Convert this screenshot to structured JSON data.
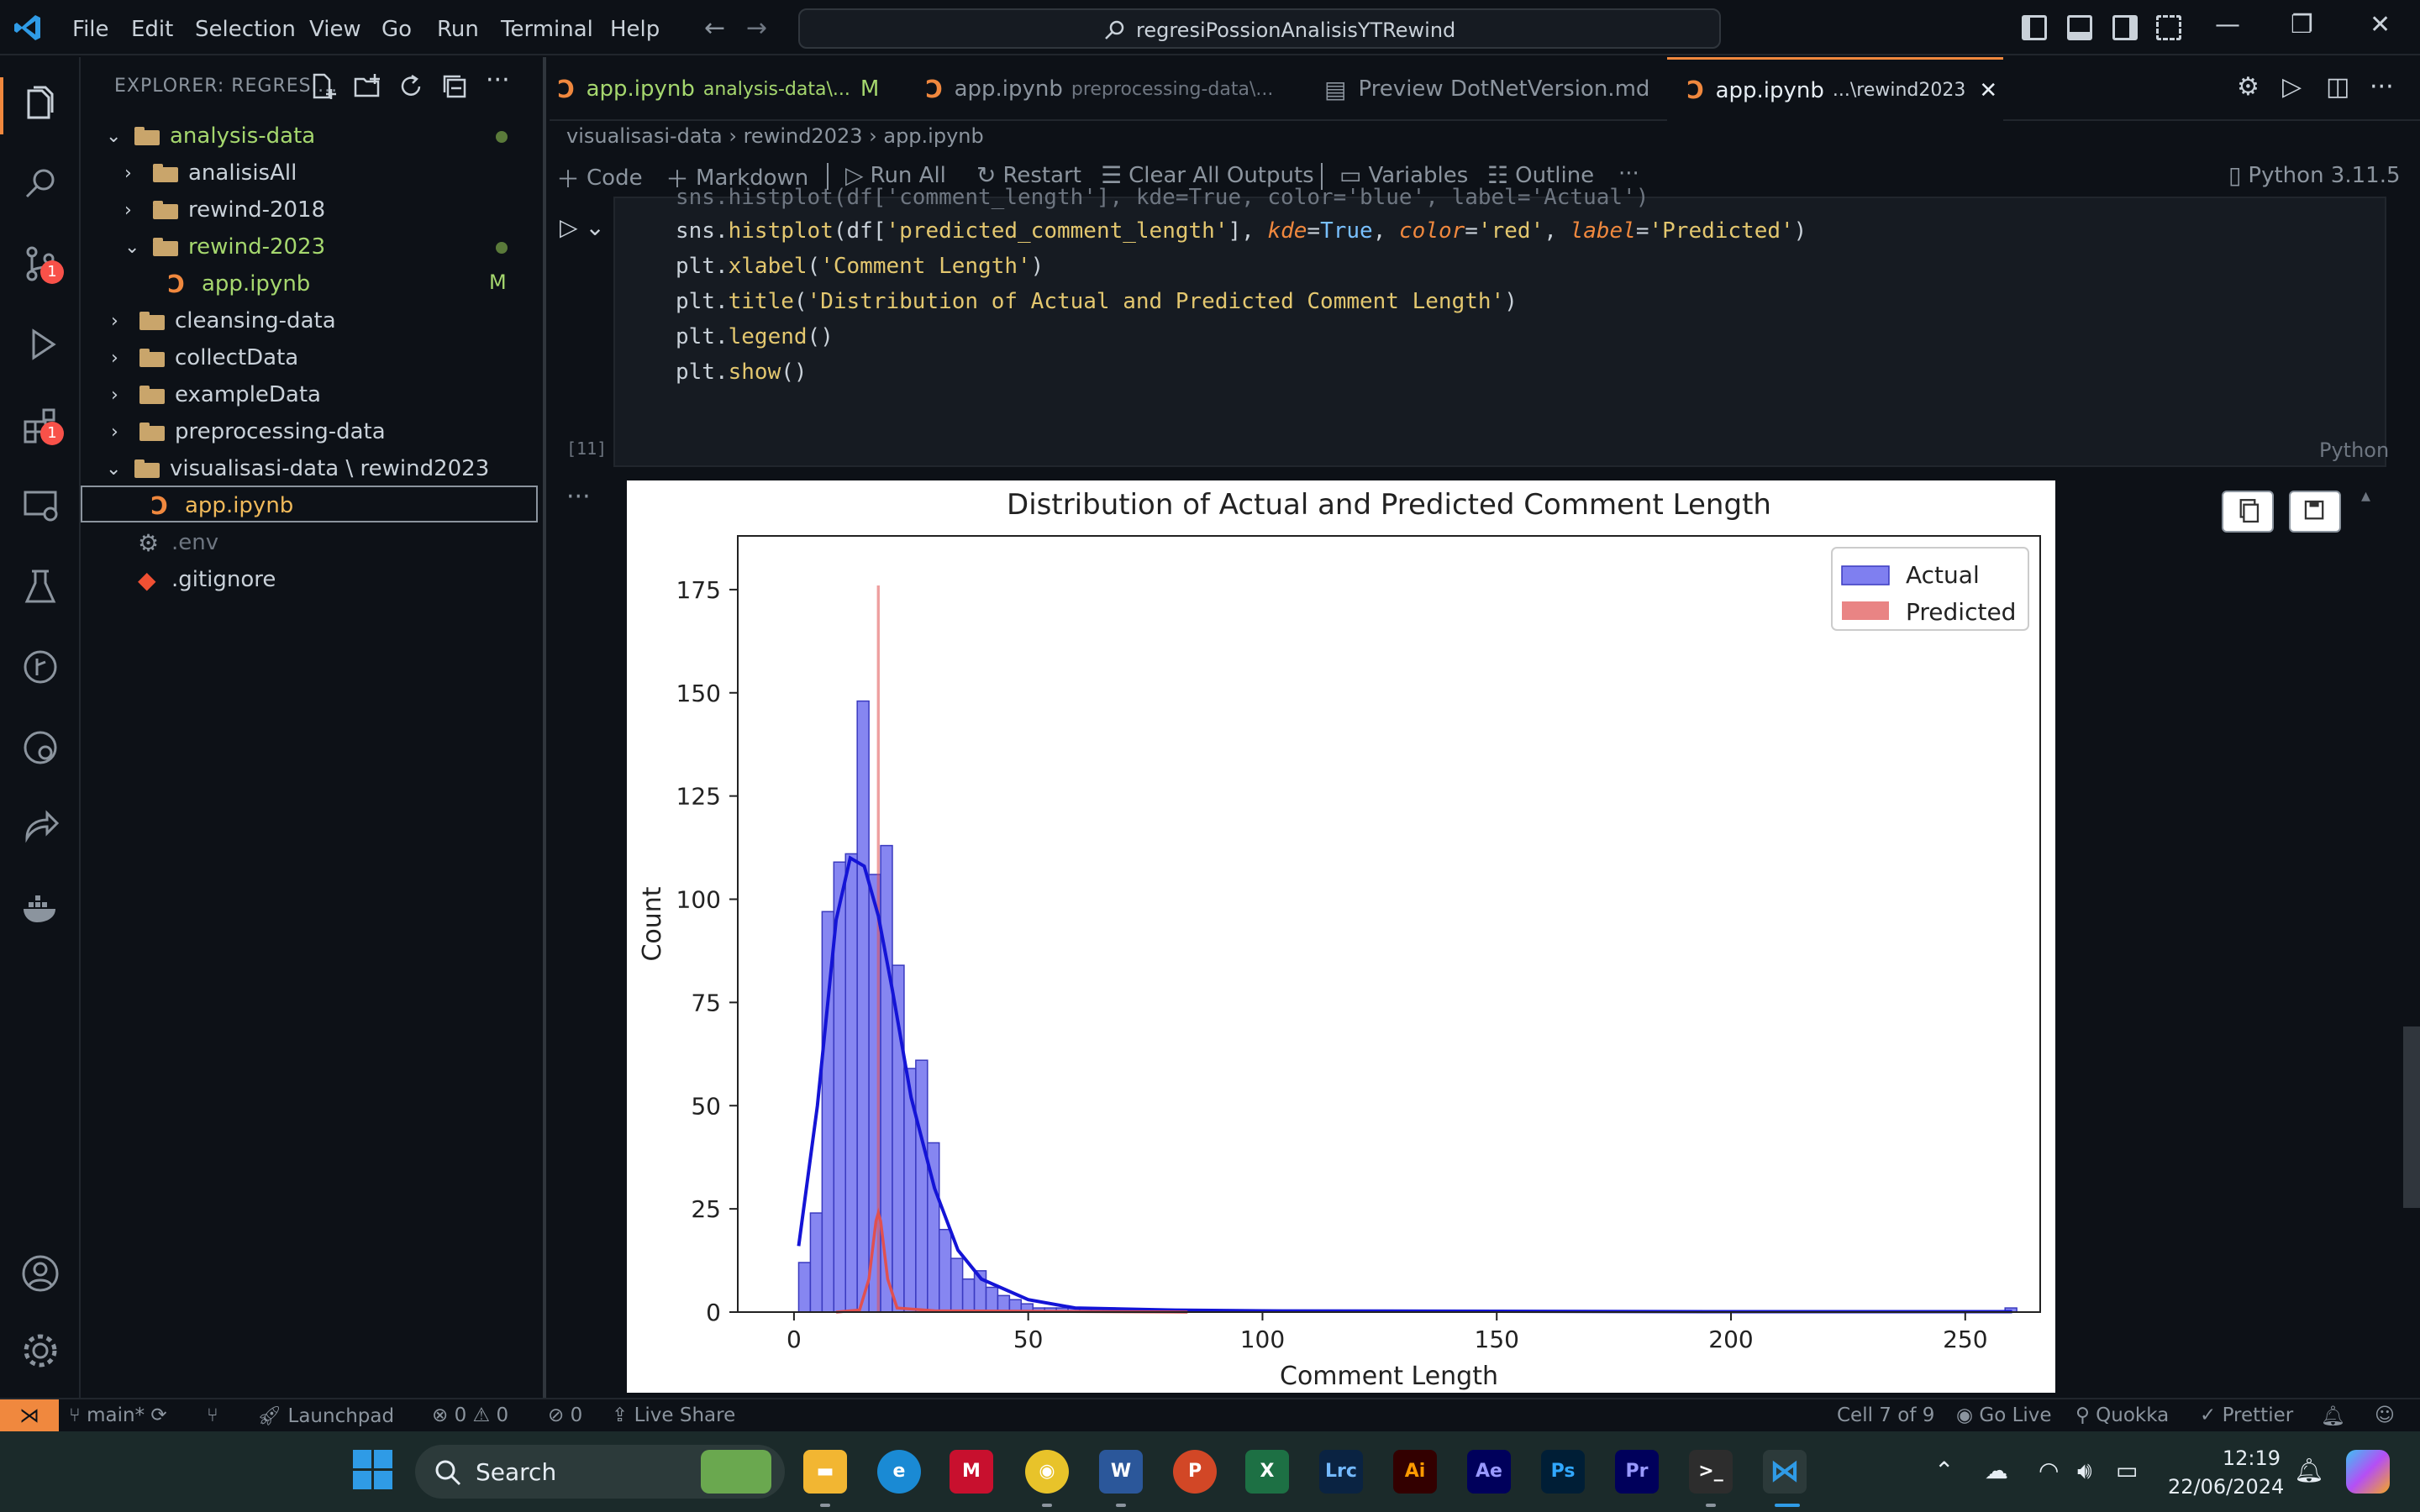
{
  "menu": [
    "File",
    "Edit",
    "Selection",
    "View",
    "Go",
    "Run",
    "Terminal",
    "Help"
  ],
  "command_center": "regresiPossionAnalisisYTRewind",
  "explorer": {
    "title": "EXPLORER: REGRESI...",
    "items": [
      {
        "label": "analysis-data"
      },
      {
        "label": "analisisAll"
      },
      {
        "label": "rewind-2018"
      },
      {
        "label": "rewind-2023"
      },
      {
        "label": "app.ipynb",
        "status": "M"
      },
      {
        "label": "cleansing-data"
      },
      {
        "label": "collectData"
      },
      {
        "label": "exampleData"
      },
      {
        "label": "preprocessing-data"
      },
      {
        "label": "visualisasi-data \\ rewind2023"
      },
      {
        "label": "app.ipynb"
      },
      {
        "label": ".env"
      },
      {
        "label": ".gitignore"
      }
    ]
  },
  "badges": {
    "source_control": "1",
    "extensions": "1"
  },
  "tabs": [
    {
      "label": "app.ipynb",
      "desc": "analysis-data\\...",
      "status": "M"
    },
    {
      "label": "app.ipynb",
      "desc": "preprocessing-data\\..."
    },
    {
      "label": "Preview DotNetVersion.md",
      "desc": ""
    },
    {
      "label": "app.ipynb",
      "desc": "...\\rewind2023",
      "close": "✕"
    }
  ],
  "breadcrumb": "visualisasi-data  ›  rewind2023  ›  app.ipynb",
  "toolbar": {
    "code": "Code",
    "markdown": "Markdown",
    "run_all": "Run All",
    "restart": "Restart",
    "clear": "Clear All Outputs",
    "variables": "Variables",
    "outline": "Outline",
    "more": "···",
    "kernel": "Python 3.11.5"
  },
  "cell": {
    "exec_count": "[11]",
    "language": "Python",
    "code": [
      "sns.histplot(df['comment_length'], kde=True, color='blue', label='Actual')",
      "sns.histplot(df['predicted_comment_length'], kde=True, color='red', label='Predicted')",
      "plt.xlabel('Comment Length')",
      "plt.title('Distribution of Actual and Predicted Comment Length')",
      "plt.legend()",
      "plt.show()"
    ]
  },
  "chart_data": {
    "type": "bar",
    "title": "Distribution of Actual and Predicted Comment Length",
    "xlabel": "Comment Length",
    "ylabel": "Count",
    "xlim": [
      -12,
      266
    ],
    "ylim": [
      0,
      188
    ],
    "xticks": [
      0,
      50,
      100,
      150,
      200,
      250
    ],
    "yticks": [
      0,
      25,
      50,
      75,
      100,
      125,
      150,
      175
    ],
    "legend": {
      "placement": "top-right",
      "entries": [
        "Actual",
        "Predicted"
      ]
    },
    "colors": {
      "actual_fill": "#7f7ff0",
      "actual_edge": "#3a3ac0",
      "actual_kde": "#1414d6",
      "predicted": "#e05050"
    },
    "series": [
      {
        "name": "Actual",
        "bin_width": 2.5,
        "bin_start": 1,
        "values": [
          12,
          24,
          97,
          109,
          111,
          148,
          106,
          113,
          84,
          59,
          61,
          41,
          20,
          13,
          8,
          10,
          6,
          4,
          3,
          2,
          1,
          1,
          1,
          1,
          1,
          1,
          1,
          0,
          0,
          0,
          0,
          0,
          0,
          0,
          0,
          0,
          0,
          0,
          0,
          0,
          0,
          0,
          0,
          0,
          0,
          0,
          0,
          0,
          0,
          0,
          0,
          0,
          0,
          0,
          0,
          0,
          0,
          0,
          0,
          0,
          0,
          0,
          0,
          0,
          0,
          0,
          0,
          0,
          0,
          0,
          0,
          0,
          0,
          0,
          0,
          0,
          0,
          0,
          0,
          0,
          0,
          0,
          0,
          0,
          0,
          0,
          0,
          0,
          0,
          0,
          0,
          0,
          0,
          0,
          0,
          0,
          0,
          0,
          0,
          0,
          0,
          0,
          0,
          1
        ],
        "kde": [
          [
            1,
            16
          ],
          [
            5,
            50
          ],
          [
            9,
            95
          ],
          [
            12,
            110
          ],
          [
            15,
            108
          ],
          [
            18,
            96
          ],
          [
            21,
            78
          ],
          [
            25,
            52
          ],
          [
            30,
            30
          ],
          [
            35,
            15
          ],
          [
            40,
            8
          ],
          [
            50,
            3
          ],
          [
            60,
            1
          ],
          [
            80,
            0.5
          ],
          [
            100,
            0.3
          ],
          [
            150,
            0.2
          ],
          [
            200,
            0.1
          ],
          [
            260,
            0.1
          ]
        ]
      },
      {
        "name": "Predicted",
        "bar": {
          "x": 18,
          "width": 0.6,
          "value": 176
        },
        "kde": [
          [
            9,
            0
          ],
          [
            14,
            0.5
          ],
          [
            16,
            8
          ],
          [
            17.5,
            22
          ],
          [
            18,
            24
          ],
          [
            18.5,
            22
          ],
          [
            20,
            8
          ],
          [
            22,
            1
          ],
          [
            30,
            0.3
          ],
          [
            84,
            0
          ]
        ]
      }
    ]
  },
  "status": {
    "branch": "main*",
    "launchpad": "Launchpad",
    "problems": "⊗ 0 ⚠ 0",
    "ports": "0",
    "live_share": "Live Share",
    "cell": "Cell 7 of 9",
    "go_live": "Go Live",
    "quokka": "Quokka",
    "prettier": "Prettier"
  },
  "taskbar": {
    "search": "Search",
    "apps": [
      "Lrc",
      "Ai",
      "Ae",
      "Ps",
      "Pr"
    ],
    "time": "12:19",
    "date": "22/06/2024"
  }
}
